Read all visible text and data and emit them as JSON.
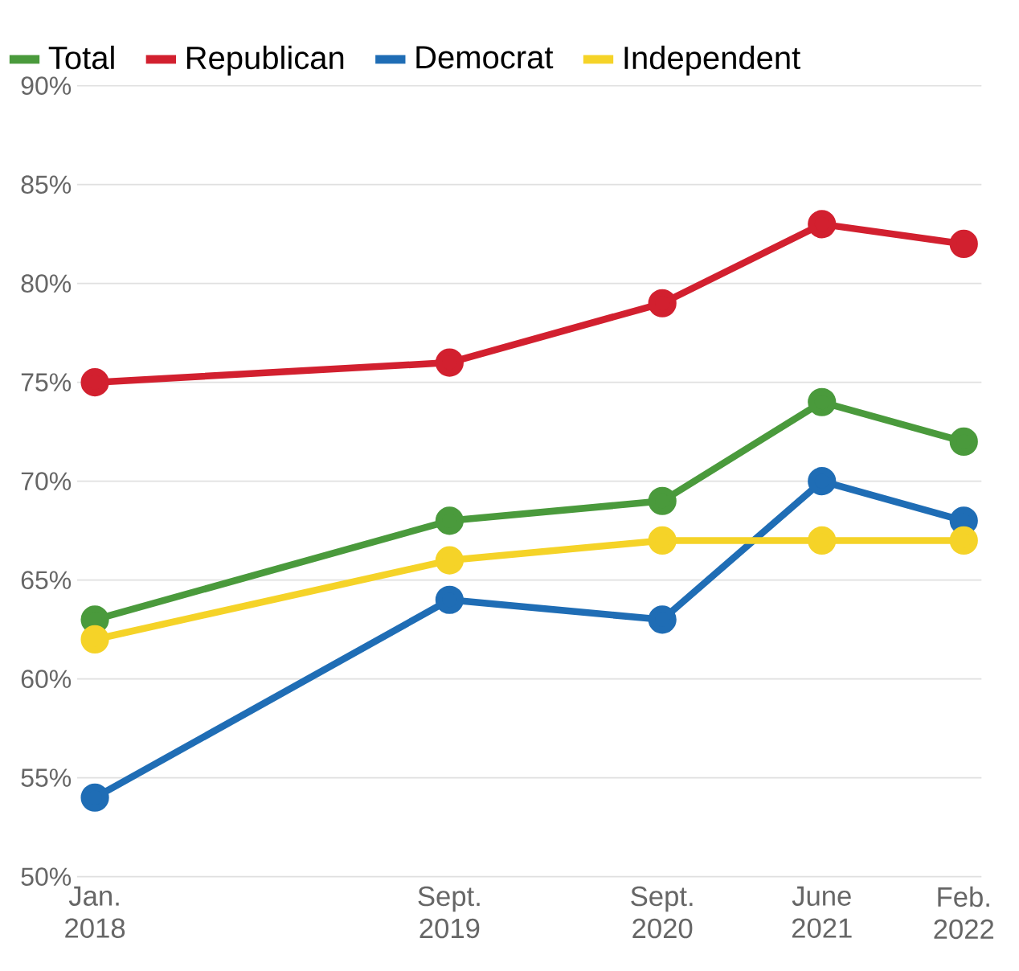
{
  "chart_data": {
    "type": "line",
    "x": [
      "2018-01",
      "2019-09",
      "2020-09",
      "2021-06",
      "2022-02"
    ],
    "series": [
      {
        "name": "Total",
        "color": "#4a9a3c",
        "values": [
          63,
          68,
          69,
          74,
          72
        ]
      },
      {
        "name": "Republican",
        "color": "#d2202f",
        "values": [
          75,
          76,
          79,
          83,
          82
        ]
      },
      {
        "name": "Democrat",
        "color": "#1f6db5",
        "values": [
          54,
          64,
          63,
          70,
          68
        ]
      },
      {
        "name": "Independent",
        "color": "#f5d328",
        "values": [
          62,
          66,
          67,
          67,
          67
        ]
      }
    ],
    "xlim": [
      "2017-12",
      "2022-03"
    ],
    "xticks": [
      {
        "value": "2018-01",
        "label": "Jan. 2018"
      },
      {
        "value": "2019-09",
        "label": "Sept. 2019"
      },
      {
        "value": "2020-09",
        "label": "Sept. 2020"
      },
      {
        "value": "2021-06",
        "label": "June 2021"
      },
      {
        "value": "2022-02",
        "label": "Feb. 2022"
      }
    ],
    "ylim": [
      50,
      90
    ],
    "yticks": [
      {
        "value": 50,
        "label": "50%"
      },
      {
        "value": 55,
        "label": "55%"
      },
      {
        "value": 60,
        "label": "60%"
      },
      {
        "value": 65,
        "label": "65%"
      },
      {
        "value": 70,
        "label": "70%"
      },
      {
        "value": 75,
        "label": "75%"
      },
      {
        "value": 80,
        "label": "80%"
      },
      {
        "value": 85,
        "label": "85%"
      },
      {
        "value": 90,
        "label": "90%"
      }
    ],
    "grid": "y",
    "legend": "top left",
    "marker": "circle",
    "line_style": "solid"
  }
}
